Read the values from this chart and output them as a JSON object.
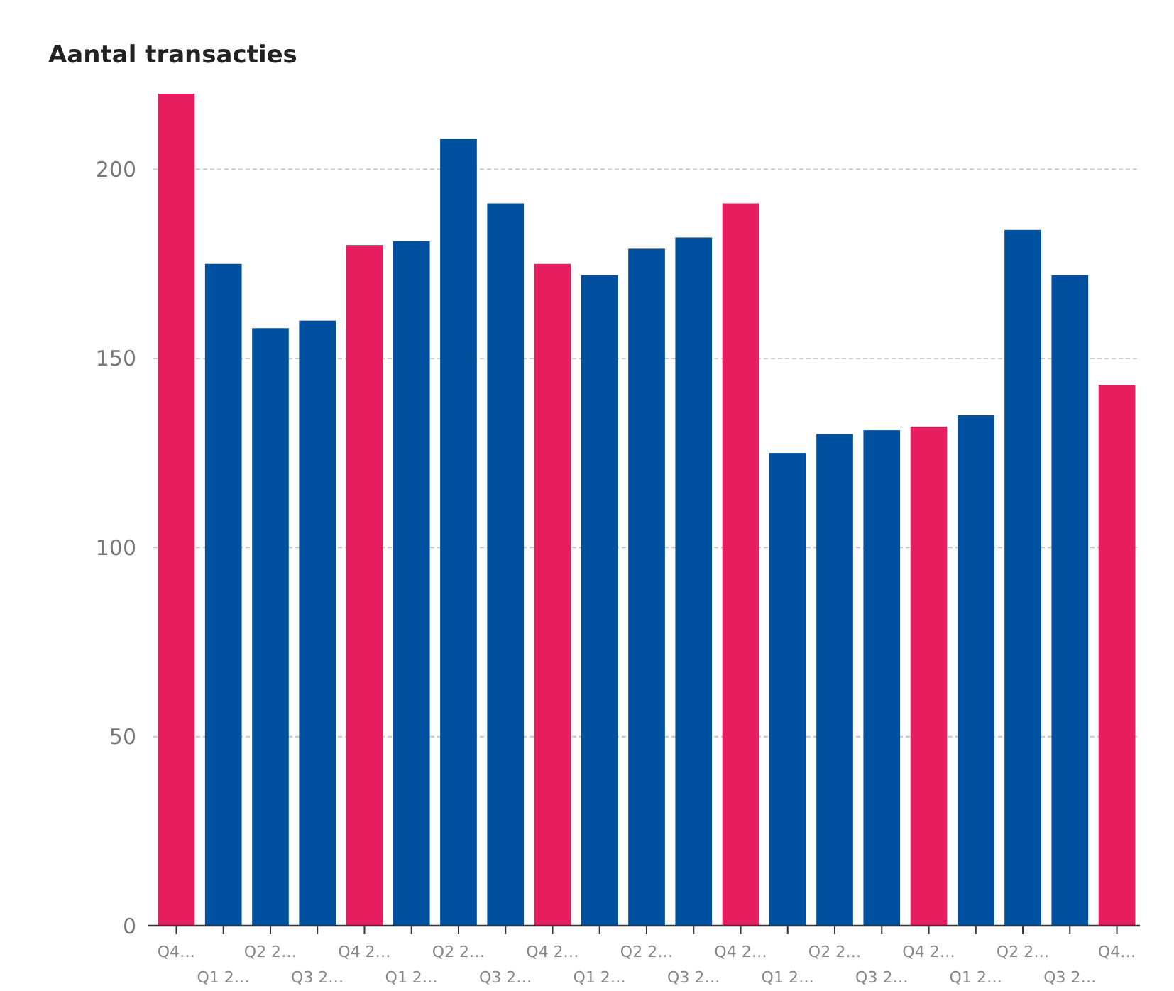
{
  "chart_data": {
    "type": "bar",
    "title": "Aantal transacties",
    "categories": [
      "Q4…",
      "Q1 2…",
      "Q2 2…",
      "Q3 2…",
      "Q4 2…",
      "Q1 2…",
      "Q2 2…",
      "Q3 2…",
      "Q4 2…",
      "Q1 2…",
      "Q2 2…",
      "Q3 2…",
      "Q4 2…",
      "Q1 2…",
      "Q2 2…",
      "Q3 2…",
      "Q4 2…",
      "Q1 2…",
      "Q2 2…",
      "Q3 2…",
      "Q4…"
    ],
    "values": [
      220,
      175,
      158,
      160,
      180,
      181,
      208,
      191,
      175,
      172,
      179,
      182,
      191,
      125,
      130,
      131,
      132,
      135,
      184,
      172,
      143
    ],
    "colors": [
      "#e61e5f",
      "#0050a0",
      "#0050a0",
      "#0050a0",
      "#e61e5f",
      "#0050a0",
      "#0050a0",
      "#0050a0",
      "#e61e5f",
      "#0050a0",
      "#0050a0",
      "#0050a0",
      "#e61e5f",
      "#0050a0",
      "#0050a0",
      "#0050a0",
      "#e61e5f",
      "#0050a0",
      "#0050a0",
      "#0050a0",
      "#e61e5f"
    ],
    "ylim": [
      0,
      220
    ],
    "yticks": [
      0,
      50,
      100,
      150,
      200
    ],
    "grid": "y"
  }
}
